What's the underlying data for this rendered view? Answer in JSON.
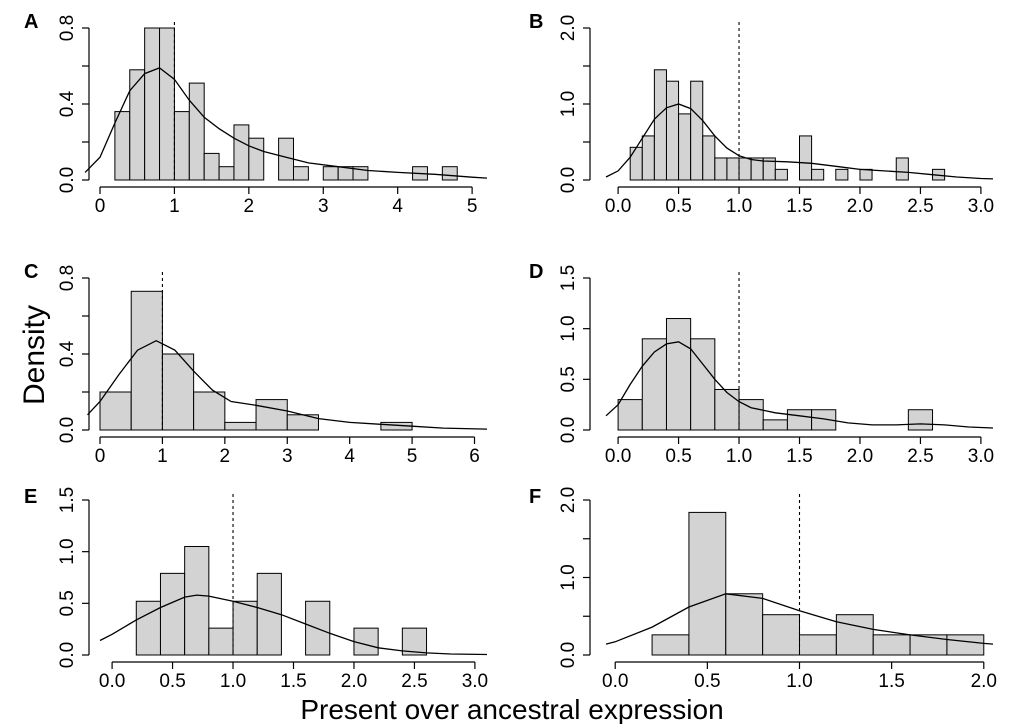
{
  "figure": {
    "xlabel": "Present over ancestral expression",
    "ylabel": "Density"
  },
  "chart_data": [
    {
      "panel": "A",
      "type": "bar",
      "xlim": [
        0,
        5.2
      ],
      "ylim": [
        0,
        0.8
      ],
      "xticks": [
        0,
        1,
        2,
        3,
        4,
        5
      ],
      "xtick_labels": [
        "0",
        "1",
        "2",
        "3",
        "4",
        "5"
      ],
      "yticks": [
        0,
        0.4,
        0.8
      ],
      "ytick_labels": [
        "0.0",
        "0.4",
        "0.8"
      ],
      "yminor": [
        0.2,
        0.6
      ],
      "bin_width": 0.2,
      "bins": [
        [
          0.2,
          0.36
        ],
        [
          0.4,
          0.58
        ],
        [
          0.6,
          0.8
        ],
        [
          0.8,
          0.8
        ],
        [
          1.0,
          0.36
        ],
        [
          1.2,
          0.51
        ],
        [
          1.4,
          0.14
        ],
        [
          1.6,
          0.07
        ],
        [
          1.8,
          0.29
        ],
        [
          2.0,
          0.22
        ],
        [
          2.4,
          0.22
        ],
        [
          2.6,
          0.07
        ],
        [
          3.0,
          0.07
        ],
        [
          3.2,
          0.07
        ],
        [
          3.4,
          0.07
        ],
        [
          4.2,
          0.07
        ],
        [
          4.6,
          0.07
        ]
      ],
      "density": [
        [
          -0.2,
          0.04
        ],
        [
          0.0,
          0.12
        ],
        [
          0.2,
          0.3
        ],
        [
          0.4,
          0.47
        ],
        [
          0.6,
          0.56
        ],
        [
          0.8,
          0.59
        ],
        [
          1.0,
          0.53
        ],
        [
          1.2,
          0.42
        ],
        [
          1.4,
          0.33
        ],
        [
          1.6,
          0.27
        ],
        [
          1.8,
          0.22
        ],
        [
          2.0,
          0.18
        ],
        [
          2.2,
          0.15
        ],
        [
          2.5,
          0.12
        ],
        [
          2.8,
          0.09
        ],
        [
          3.2,
          0.07
        ],
        [
          3.6,
          0.05
        ],
        [
          4.0,
          0.04
        ],
        [
          4.5,
          0.03
        ],
        [
          5.0,
          0.015
        ],
        [
          5.2,
          0.01
        ]
      ],
      "ref_line": 1.0
    },
    {
      "panel": "B",
      "type": "bar",
      "xlim": [
        -0.1,
        3.1
      ],
      "ylim": [
        0,
        2.0
      ],
      "xticks": [
        0,
        0.5,
        1.0,
        1.5,
        2.0,
        2.5,
        3.0
      ],
      "xtick_labels": [
        "0.0",
        "0.5",
        "1.0",
        "1.5",
        "2.0",
        "2.5",
        "3.0"
      ],
      "yticks": [
        0,
        1.0,
        2.0
      ],
      "ytick_labels": [
        "0.0",
        "1.0",
        "2.0"
      ],
      "yminor": [
        0.5,
        1.5
      ],
      "bin_width": 0.1,
      "bins": [
        [
          0.1,
          0.43
        ],
        [
          0.2,
          0.58
        ],
        [
          0.3,
          1.45
        ],
        [
          0.4,
          1.3
        ],
        [
          0.5,
          0.87
        ],
        [
          0.6,
          1.3
        ],
        [
          0.7,
          0.58
        ],
        [
          0.8,
          0.29
        ],
        [
          0.9,
          0.29
        ],
        [
          1.0,
          0.29
        ],
        [
          1.1,
          0.29
        ],
        [
          1.2,
          0.29
        ],
        [
          1.3,
          0.14
        ],
        [
          1.5,
          0.58
        ],
        [
          1.6,
          0.14
        ],
        [
          1.8,
          0.14
        ],
        [
          2.0,
          0.14
        ],
        [
          2.3,
          0.29
        ],
        [
          2.6,
          0.14
        ]
      ],
      "density": [
        [
          -0.1,
          0.04
        ],
        [
          0.0,
          0.12
        ],
        [
          0.1,
          0.3
        ],
        [
          0.2,
          0.55
        ],
        [
          0.3,
          0.8
        ],
        [
          0.4,
          0.95
        ],
        [
          0.5,
          1.0
        ],
        [
          0.6,
          0.94
        ],
        [
          0.7,
          0.78
        ],
        [
          0.8,
          0.58
        ],
        [
          0.9,
          0.42
        ],
        [
          1.0,
          0.32
        ],
        [
          1.1,
          0.27
        ],
        [
          1.2,
          0.25
        ],
        [
          1.4,
          0.24
        ],
        [
          1.6,
          0.22
        ],
        [
          1.8,
          0.18
        ],
        [
          2.0,
          0.14
        ],
        [
          2.2,
          0.12
        ],
        [
          2.4,
          0.1
        ],
        [
          2.6,
          0.07
        ],
        [
          2.8,
          0.04
        ],
        [
          3.0,
          0.02
        ],
        [
          3.1,
          0.015
        ]
      ],
      "ref_line": 1.0
    },
    {
      "panel": "C",
      "type": "bar",
      "xlim": [
        0,
        6.2
      ],
      "ylim": [
        0,
        0.8
      ],
      "xticks": [
        0,
        1,
        2,
        3,
        4,
        5,
        6
      ],
      "xtick_labels": [
        "0",
        "1",
        "2",
        "3",
        "4",
        "5",
        "6"
      ],
      "yticks": [
        0,
        0.4,
        0.8
      ],
      "ytick_labels": [
        "0.0",
        "0.4",
        "0.8"
      ],
      "yminor": [
        0.2,
        0.6
      ],
      "bin_width": 0.5,
      "bins": [
        [
          0.0,
          0.2
        ],
        [
          0.5,
          0.73
        ],
        [
          1.0,
          0.4
        ],
        [
          1.5,
          0.2
        ],
        [
          2.0,
          0.04
        ],
        [
          2.5,
          0.16
        ],
        [
          3.0,
          0.08
        ],
        [
          4.5,
          0.04
        ]
      ],
      "density": [
        [
          -0.2,
          0.08
        ],
        [
          0.0,
          0.15
        ],
        [
          0.3,
          0.29
        ],
        [
          0.6,
          0.42
        ],
        [
          0.9,
          0.47
        ],
        [
          1.2,
          0.42
        ],
        [
          1.5,
          0.31
        ],
        [
          1.8,
          0.21
        ],
        [
          2.1,
          0.15
        ],
        [
          2.5,
          0.13
        ],
        [
          3.0,
          0.1
        ],
        [
          3.5,
          0.06
        ],
        [
          4.0,
          0.04
        ],
        [
          4.5,
          0.03
        ],
        [
          5.0,
          0.02
        ],
        [
          5.5,
          0.01
        ],
        [
          6.2,
          0.005
        ]
      ],
      "ref_line": 1.0
    },
    {
      "panel": "D",
      "type": "bar",
      "xlim": [
        -0.1,
        3.1
      ],
      "ylim": [
        0,
        1.5
      ],
      "xticks": [
        0,
        0.5,
        1.0,
        1.5,
        2.0,
        2.5,
        3.0
      ],
      "xtick_labels": [
        "0.0",
        "0.5",
        "1.0",
        "1.5",
        "2.0",
        "2.5",
        "3.0"
      ],
      "yticks": [
        0,
        0.5,
        1.0,
        1.5
      ],
      "ytick_labels": [
        "0.0",
        "0.5",
        "1.0",
        "1.5"
      ],
      "yminor": [],
      "bin_width": 0.2,
      "bins": [
        [
          0.0,
          0.3
        ],
        [
          0.2,
          0.9
        ],
        [
          0.4,
          1.1
        ],
        [
          0.6,
          0.9
        ],
        [
          0.8,
          0.4
        ],
        [
          1.0,
          0.3
        ],
        [
          1.2,
          0.1
        ],
        [
          1.4,
          0.2
        ],
        [
          1.6,
          0.2
        ],
        [
          2.4,
          0.2
        ]
      ],
      "density": [
        [
          -0.1,
          0.14
        ],
        [
          0.0,
          0.25
        ],
        [
          0.1,
          0.45
        ],
        [
          0.2,
          0.63
        ],
        [
          0.3,
          0.77
        ],
        [
          0.4,
          0.85
        ],
        [
          0.5,
          0.87
        ],
        [
          0.6,
          0.8
        ],
        [
          0.7,
          0.65
        ],
        [
          0.8,
          0.5
        ],
        [
          0.9,
          0.37
        ],
        [
          1.0,
          0.28
        ],
        [
          1.1,
          0.22
        ],
        [
          1.3,
          0.17
        ],
        [
          1.5,
          0.14
        ],
        [
          1.7,
          0.11
        ],
        [
          1.9,
          0.07
        ],
        [
          2.1,
          0.05
        ],
        [
          2.3,
          0.05
        ],
        [
          2.5,
          0.06
        ],
        [
          2.7,
          0.05
        ],
        [
          2.9,
          0.03
        ],
        [
          3.1,
          0.02
        ]
      ],
      "ref_line": 1.0
    },
    {
      "panel": "E",
      "type": "bar",
      "xlim": [
        -0.1,
        3.1
      ],
      "ylim": [
        0,
        1.5
      ],
      "xticks": [
        0,
        0.5,
        1.0,
        1.5,
        2.0,
        2.5,
        3.0
      ],
      "xtick_labels": [
        "0.0",
        "0.5",
        "1.0",
        "1.5",
        "2.0",
        "2.5",
        "3.0"
      ],
      "yticks": [
        0,
        0.5,
        1.0,
        1.5
      ],
      "ytick_labels": [
        "0.0",
        "0.5",
        "1.0",
        "1.5"
      ],
      "yminor": [],
      "bin_width": 0.2,
      "bins": [
        [
          0.2,
          0.52
        ],
        [
          0.4,
          0.79
        ],
        [
          0.6,
          1.05
        ],
        [
          0.8,
          0.26
        ],
        [
          1.0,
          0.52
        ],
        [
          1.2,
          0.79
        ],
        [
          1.6,
          0.52
        ],
        [
          2.0,
          0.26
        ],
        [
          2.4,
          0.26
        ]
      ],
      "density": [
        [
          -0.1,
          0.14
        ],
        [
          0.0,
          0.2
        ],
        [
          0.2,
          0.34
        ],
        [
          0.4,
          0.46
        ],
        [
          0.6,
          0.56
        ],
        [
          0.7,
          0.58
        ],
        [
          0.8,
          0.57
        ],
        [
          1.0,
          0.52
        ],
        [
          1.2,
          0.46
        ],
        [
          1.4,
          0.39
        ],
        [
          1.6,
          0.3
        ],
        [
          1.8,
          0.21
        ],
        [
          2.0,
          0.13
        ],
        [
          2.2,
          0.07
        ],
        [
          2.4,
          0.04
        ],
        [
          2.6,
          0.02
        ],
        [
          2.8,
          0.01
        ],
        [
          3.1,
          0.005
        ]
      ],
      "ref_line": 1.0
    },
    {
      "panel": "F",
      "type": "bar",
      "xlim": [
        -0.05,
        2.05
      ],
      "ylim": [
        0,
        2.0
      ],
      "xticks": [
        0,
        0.5,
        1.0,
        1.5,
        2.0
      ],
      "xtick_labels": [
        "0.0",
        "0.5",
        "1.0",
        "1.5",
        "2.0"
      ],
      "yticks": [
        0,
        1.0,
        2.0
      ],
      "ytick_labels": [
        "0.0",
        "1.0",
        "2.0"
      ],
      "yminor": [
        0.5,
        1.5
      ],
      "bin_width": 0.2,
      "bins": [
        [
          0.2,
          0.26
        ],
        [
          0.4,
          1.84
        ],
        [
          0.6,
          0.79
        ],
        [
          0.8,
          0.52
        ],
        [
          1.0,
          0.26
        ],
        [
          1.2,
          0.52
        ],
        [
          1.4,
          0.26
        ],
        [
          1.6,
          0.26
        ],
        [
          1.8,
          0.26
        ]
      ],
      "density": [
        [
          -0.05,
          0.14
        ],
        [
          0.0,
          0.17
        ],
        [
          0.2,
          0.36
        ],
        [
          0.4,
          0.62
        ],
        [
          0.6,
          0.79
        ],
        [
          0.8,
          0.73
        ],
        [
          1.0,
          0.57
        ],
        [
          1.2,
          0.43
        ],
        [
          1.4,
          0.33
        ],
        [
          1.6,
          0.26
        ],
        [
          1.8,
          0.2
        ],
        [
          2.0,
          0.15
        ],
        [
          2.05,
          0.14
        ]
      ],
      "ref_line": 1.0
    }
  ]
}
